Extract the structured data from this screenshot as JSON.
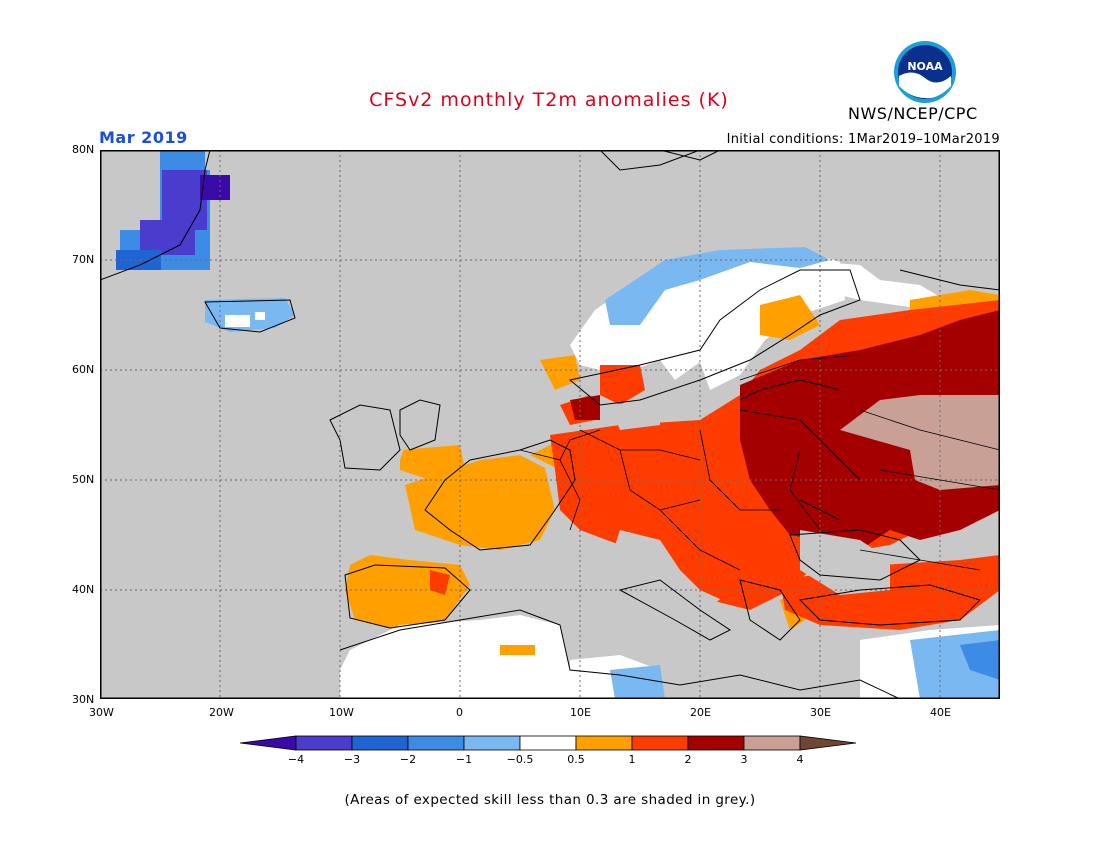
{
  "title": "CFSv2 monthly T2m anomalies (K)",
  "organization": "NWS/NCEP/CPC",
  "logo_text": "NOAA",
  "period": "Mar 2019",
  "initial_conditions": "Initial conditions: 1Mar2019–10Mar2019",
  "footnote": "(Areas of expected skill less than 0.3 are shaded in grey.)",
  "map": {
    "lon_range": [
      -30,
      45
    ],
    "lat_range": [
      30,
      80
    ],
    "lat_ticks": [
      "30N",
      "40N",
      "50N",
      "60N",
      "70N",
      "80N"
    ],
    "lon_ticks": [
      "30W",
      "20W",
      "10W",
      "0",
      "10E",
      "20E",
      "30E",
      "40E"
    ],
    "grid": "dotted",
    "low_skill_color": "#c8c8c8"
  },
  "colorbar": {
    "labels": [
      "−4",
      "−3",
      "−2",
      "−1",
      "−0.5",
      "0.5",
      "1",
      "2",
      "3",
      "4"
    ],
    "colors": [
      "#3a0aa8",
      "#4a3ccc",
      "#1e64d2",
      "#3c8ce6",
      "#7ab8f2",
      "#ffffff",
      "#ffa000",
      "#ff3c00",
      "#a50000",
      "#c8a096",
      "#6e4632"
    ]
  },
  "regions": [
    {
      "name": "Greenland east coast",
      "anomaly": "-3 to -2"
    },
    {
      "name": "Iceland",
      "anomaly": "-1 to -0.5"
    },
    {
      "name": "Northern Scandinavia",
      "anomaly": "-0.5 to 0.5"
    },
    {
      "name": "Central Europe",
      "anomaly": "1 to 2"
    },
    {
      "name": "Western Russia",
      "anomaly": "2 to 4"
    },
    {
      "name": "Iberia and France",
      "anomaly": "0.5 to 1"
    },
    {
      "name": "Eastern Mediterranean coast",
      "anomaly": "-1 to -0.5"
    }
  ]
}
